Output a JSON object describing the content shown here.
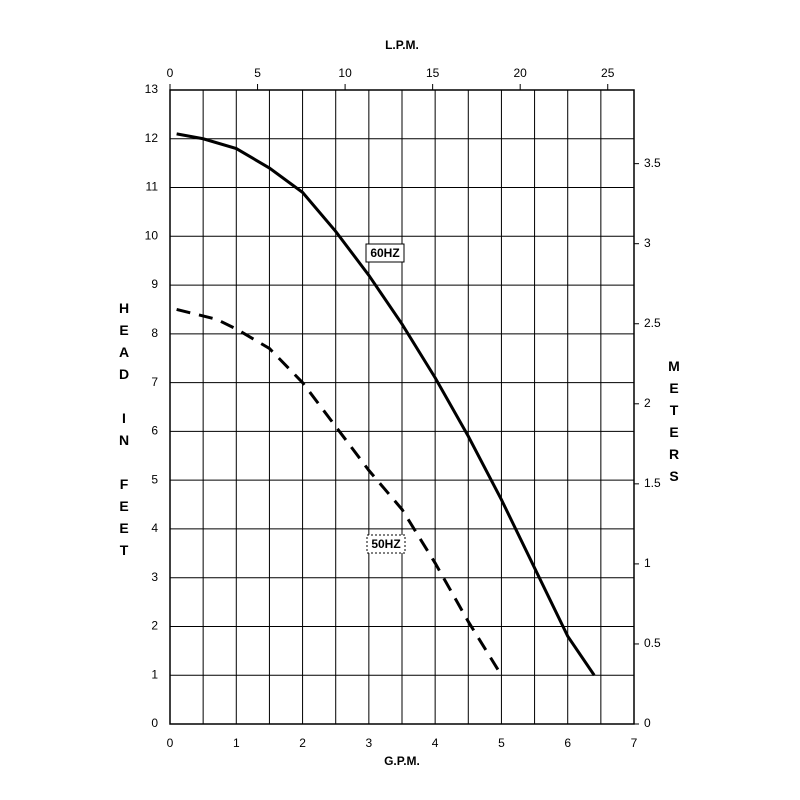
{
  "chart_data": {
    "type": "line",
    "x_title": "G.P.M.",
    "x2_title": "L.P.M.",
    "y_title": "HEAD IN FEET",
    "y2_title": "METERS",
    "xlim": [
      0,
      7
    ],
    "xticks": [
      0,
      1,
      2,
      3,
      4,
      5,
      6,
      7
    ],
    "x_minor_ticks": [
      0.5,
      1.5,
      2.5,
      3.5,
      4.5,
      5.5,
      6.5
    ],
    "x2lim": [
      0,
      26.5
    ],
    "x2ticks": [
      0,
      5,
      10,
      15,
      20,
      25
    ],
    "ylim": [
      0,
      13
    ],
    "yticks": [
      0,
      1,
      2,
      3,
      4,
      5,
      6,
      7,
      8,
      9,
      10,
      11,
      12,
      13
    ],
    "y2lim": [
      0,
      3.96
    ],
    "y2ticks": [
      0,
      0.5,
      1,
      1.5,
      2,
      2.5,
      3,
      3.5
    ],
    "grid": true,
    "series": [
      {
        "name": "60HZ",
        "color": "#000000",
        "dash": false,
        "x": [
          0.1,
          0.5,
          1,
          1.5,
          2,
          2.5,
          3,
          3.5,
          4,
          4.5,
          5,
          5.5,
          6,
          6.4
        ],
        "values": [
          12.1,
          12.0,
          11.8,
          11.4,
          10.9,
          10.1,
          9.2,
          8.2,
          7.1,
          5.9,
          4.6,
          3.2,
          1.8,
          1.0
        ]
      },
      {
        "name": "50HZ",
        "color": "#000000",
        "dash": true,
        "x": [
          0.1,
          0.7,
          1,
          1.5,
          2,
          2.5,
          3,
          3.5,
          4,
          4.5,
          5
        ],
        "values": [
          8.5,
          8.3,
          8.1,
          7.7,
          7.0,
          6.1,
          5.2,
          4.4,
          3.3,
          2.1,
          1.0
        ]
      }
    ]
  }
}
